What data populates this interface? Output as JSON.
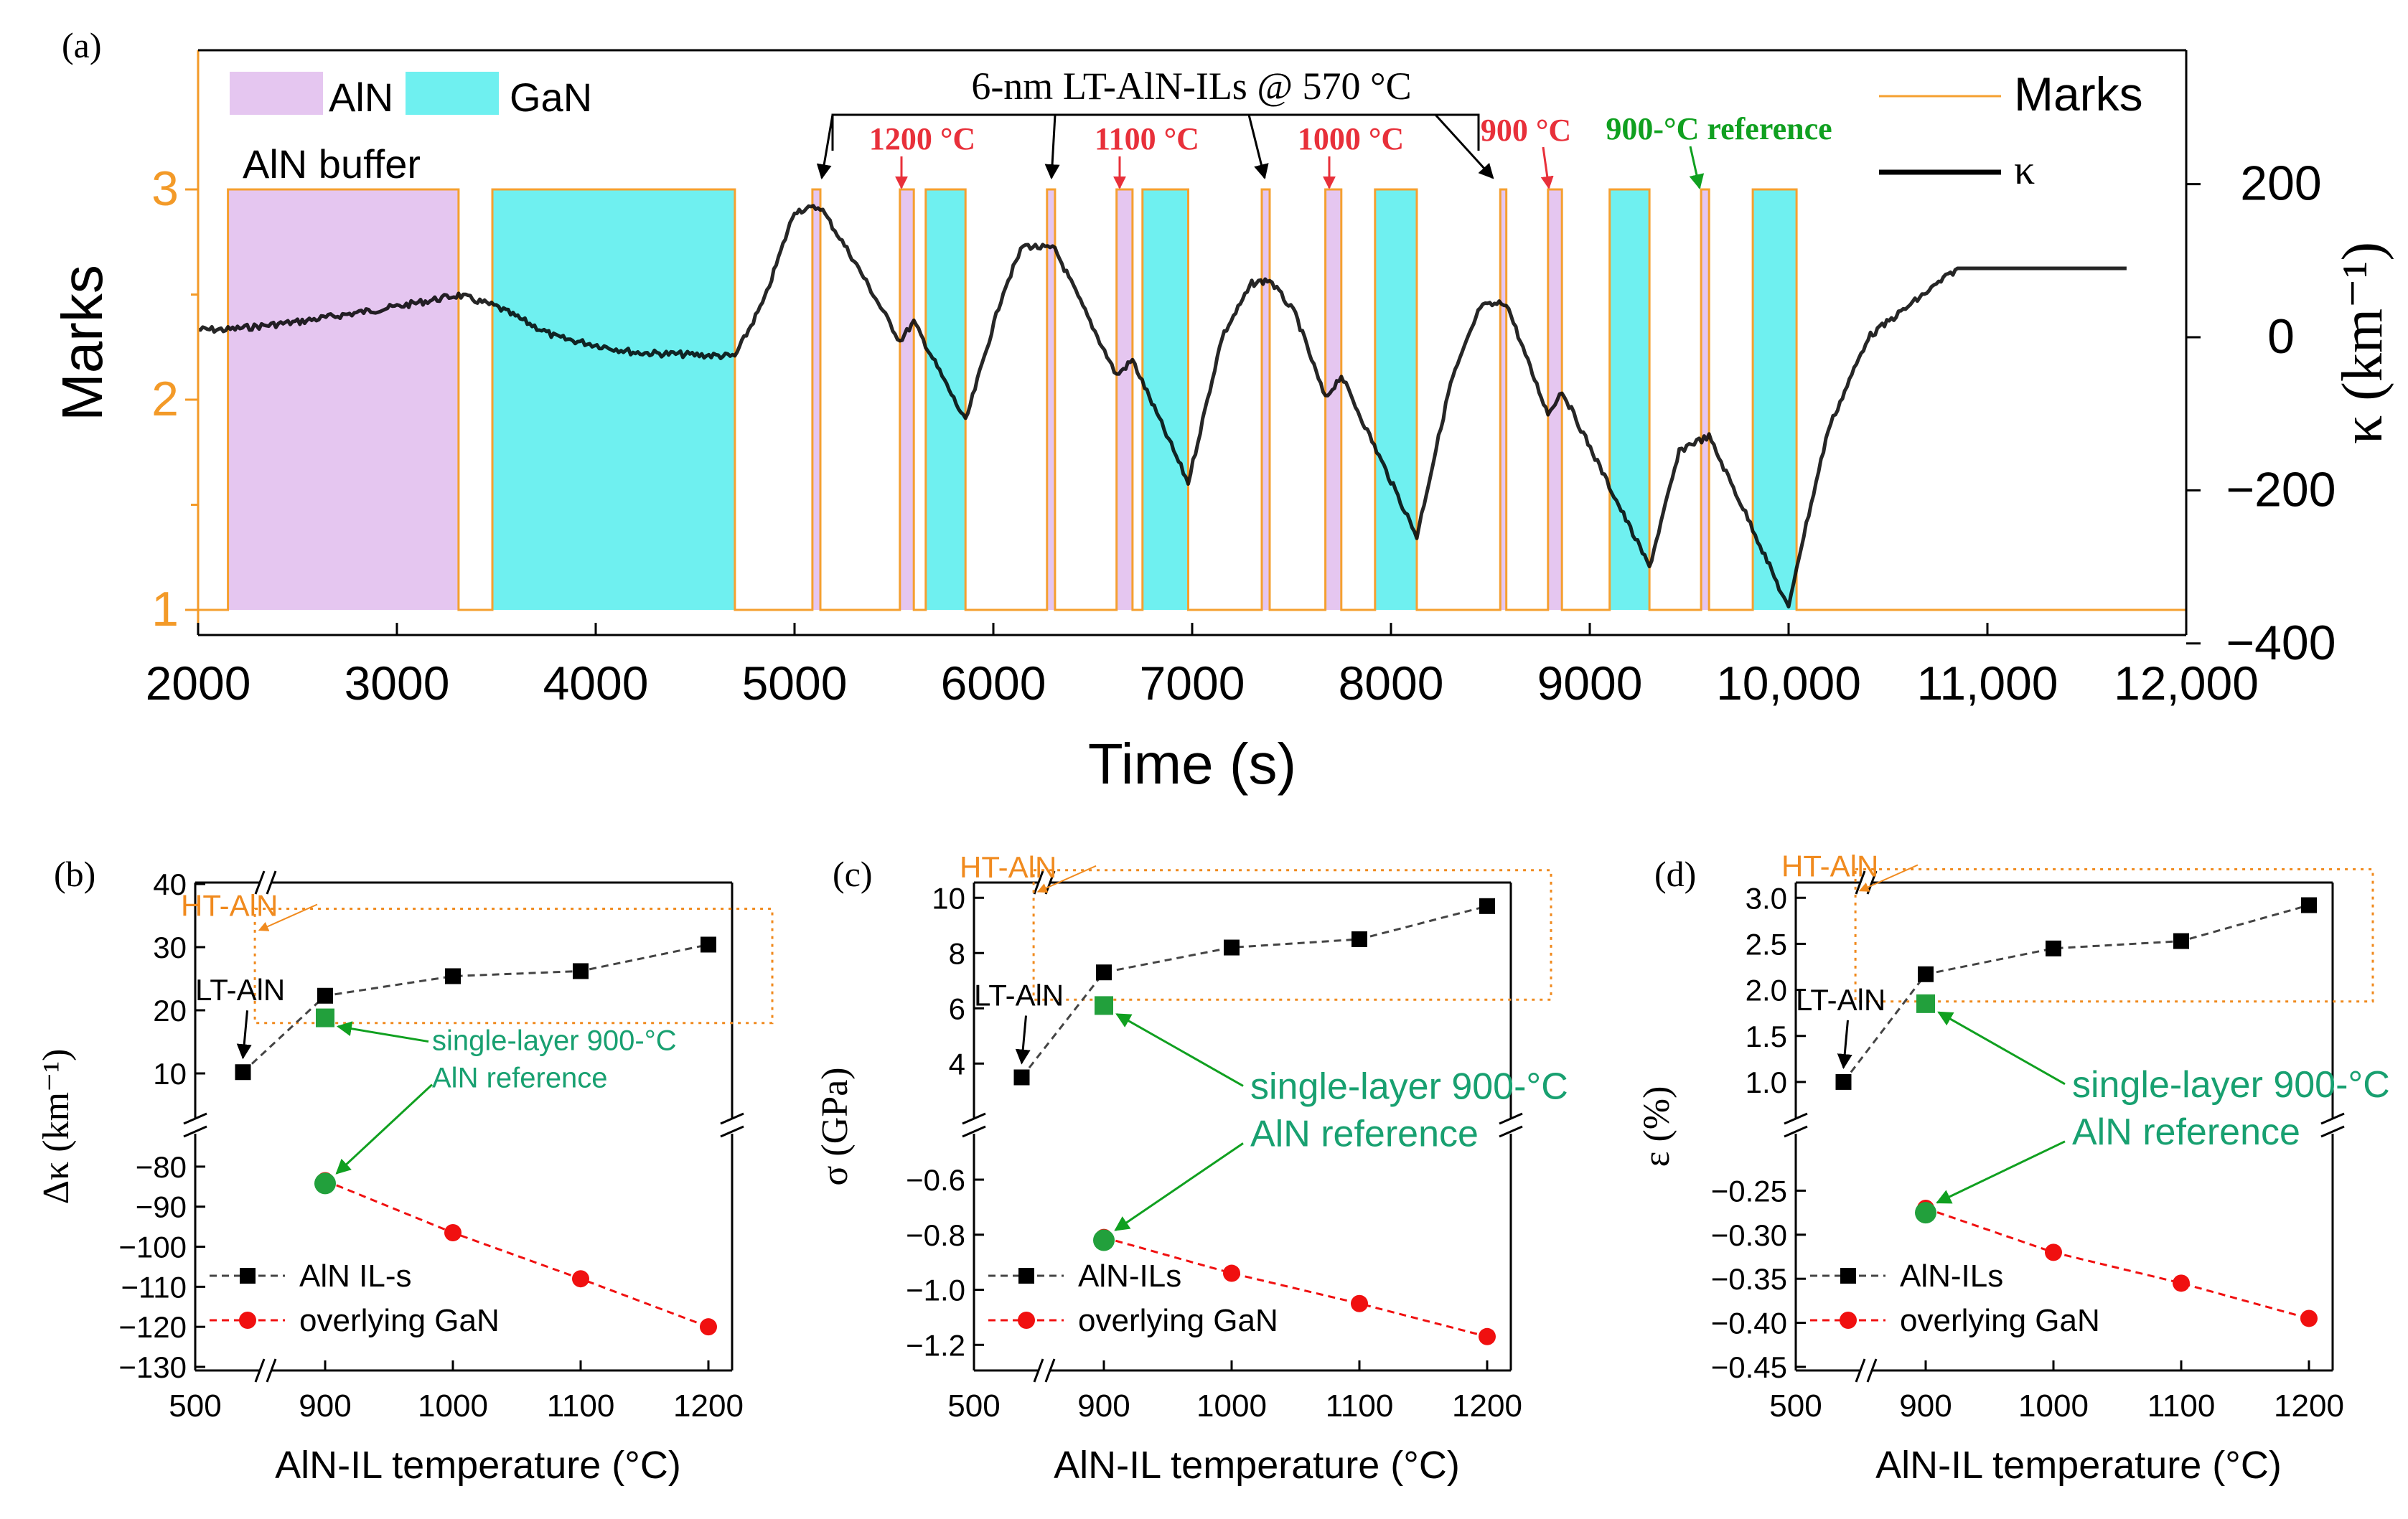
{
  "chart_data": [
    {
      "panel": "(a)",
      "type": "line",
      "xlabel": "Time (s)",
      "ylabel_left": "Marks",
      "ylabel_right": "κ (km⁻¹)",
      "xlim": [
        2000,
        12000
      ],
      "ylim_left": [
        0.8,
        3.6
      ],
      "ylim_right": [
        -400,
        400
      ],
      "x_ticks": [
        "2000",
        "3000",
        "4000",
        "5000",
        "6000",
        "7000",
        "8000",
        "9000",
        "10,000",
        "11,000",
        "12,000"
      ],
      "y_left_ticks": [
        "1",
        "2",
        "3"
      ],
      "y_right_ticks": [
        "−400",
        "−200",
        "0",
        "200"
      ],
      "legend": {
        "aln": "AlN",
        "gan": "GaN",
        "marks": "Marks",
        "kappa": "κ"
      },
      "annotations": {
        "buffer": "AlN buffer",
        "il": "6-nm LT-AlN-ILs @ 570 °C",
        "t1200": "1200 °C",
        "t1100": "1100 °C",
        "t1000": "1000 °C",
        "t900": "900 °C",
        "ref": "900-°C reference"
      },
      "aln_regions": [
        [
          2150,
          3310
        ],
        [
          5090,
          5130
        ],
        [
          5530,
          5600
        ],
        [
          6270,
          6310
        ],
        [
          6620,
          6700
        ],
        [
          7350,
          7390
        ],
        [
          7670,
          7750
        ],
        [
          8550,
          8580
        ],
        [
          8790,
          8860
        ],
        [
          9560,
          9600
        ]
      ],
      "gan_regions": [
        [
          3480,
          4700
        ],
        [
          5660,
          5860
        ],
        [
          6750,
          6980
        ],
        [
          7920,
          8130
        ],
        [
          9100,
          9300
        ],
        [
          9820,
          10040
        ]
      ],
      "marks_series": [
        [
          2000,
          1
        ],
        [
          2150,
          1
        ],
        [
          2150,
          3
        ],
        [
          3310,
          3
        ],
        [
          3310,
          1
        ],
        [
          3480,
          1
        ],
        [
          3480,
          3
        ],
        [
          4700,
          3
        ],
        [
          4700,
          1
        ],
        [
          5090,
          1
        ],
        [
          5090,
          3
        ],
        [
          5130,
          3
        ],
        [
          5130,
          1
        ],
        [
          5530,
          1
        ],
        [
          5530,
          3
        ],
        [
          5600,
          3
        ],
        [
          5600,
          1
        ],
        [
          5660,
          1
        ],
        [
          5660,
          3
        ],
        [
          5860,
          3
        ],
        [
          5860,
          1
        ],
        [
          6270,
          1
        ],
        [
          6270,
          3
        ],
        [
          6310,
          3
        ],
        [
          6310,
          1
        ],
        [
          6620,
          1
        ],
        [
          6620,
          3
        ],
        [
          6700,
          3
        ],
        [
          6700,
          1
        ],
        [
          6750,
          1
        ],
        [
          6750,
          3
        ],
        [
          6980,
          3
        ],
        [
          6980,
          1
        ],
        [
          7350,
          1
        ],
        [
          7350,
          3
        ],
        [
          7390,
          3
        ],
        [
          7390,
          1
        ],
        [
          7670,
          1
        ],
        [
          7670,
          3
        ],
        [
          7750,
          3
        ],
        [
          7750,
          1
        ],
        [
          7920,
          1
        ],
        [
          7920,
          3
        ],
        [
          8130,
          3
        ],
        [
          8130,
          1
        ],
        [
          8550,
          1
        ],
        [
          8550,
          3
        ],
        [
          8580,
          3
        ],
        [
          8580,
          1
        ],
        [
          8790,
          1
        ],
        [
          8790,
          3
        ],
        [
          8860,
          3
        ],
        [
          8860,
          1
        ],
        [
          9100,
          1
        ],
        [
          9100,
          3
        ],
        [
          9300,
          3
        ],
        [
          9300,
          1
        ],
        [
          9560,
          1
        ],
        [
          9560,
          3
        ],
        [
          9600,
          3
        ],
        [
          9600,
          1
        ],
        [
          9820,
          1
        ],
        [
          9820,
          3
        ],
        [
          10040,
          3
        ],
        [
          10040,
          1
        ],
        [
          12000,
          1
        ]
      ],
      "kappa_series": [
        [
          2000,
          10
        ],
        [
          2150,
          10
        ],
        [
          2500,
          20
        ],
        [
          3000,
          40
        ],
        [
          3310,
          55
        ],
        [
          3500,
          40
        ],
        [
          3800,
          0
        ],
        [
          4200,
          -20
        ],
        [
          4700,
          -25
        ],
        [
          4850,
          50
        ],
        [
          5000,
          165
        ],
        [
          5130,
          170
        ],
        [
          5300,
          100
        ],
        [
          5530,
          -5
        ],
        [
          5600,
          20
        ],
        [
          5860,
          -110
        ],
        [
          6050,
          60
        ],
        [
          6150,
          120
        ],
        [
          6310,
          115
        ],
        [
          6450,
          40
        ],
        [
          6620,
          -50
        ],
        [
          6700,
          -30
        ],
        [
          6980,
          -190
        ],
        [
          7150,
          0
        ],
        [
          7300,
          70
        ],
        [
          7390,
          75
        ],
        [
          7520,
          30
        ],
        [
          7670,
          -80
        ],
        [
          7750,
          -50
        ],
        [
          8130,
          -260
        ],
        [
          8300,
          -60
        ],
        [
          8450,
          40
        ],
        [
          8580,
          45
        ],
        [
          8700,
          -40
        ],
        [
          8790,
          -100
        ],
        [
          8860,
          -70
        ],
        [
          9300,
          -300
        ],
        [
          9450,
          -150
        ],
        [
          9500,
          -140
        ],
        [
          9600,
          -130
        ],
        [
          9820,
          -250
        ],
        [
          10000,
          -355
        ],
        [
          10040,
          -300
        ],
        [
          10200,
          -120
        ],
        [
          10400,
          0
        ],
        [
          10600,
          40
        ],
        [
          10850,
          90
        ],
        [
          11700,
          90
        ]
      ]
    },
    {
      "panel": "(b)",
      "type": "scatter-line",
      "xlabel": "AlN-IL temperature (°C)",
      "ylabel": "Δκ (km⁻¹)",
      "x_ticks": [
        "500",
        "900",
        "1000",
        "1100",
        "1200"
      ],
      "y_upper_ticks": [
        "10",
        "20",
        "30",
        "40"
      ],
      "y_lower_ticks": [
        "−80",
        "−90",
        "−100",
        "−110",
        "−120",
        "−130"
      ],
      "upper_range": [
        5,
        40
      ],
      "lower_range": [
        -130,
        -75
      ],
      "series": [
        {
          "name": "AlN IL-s",
          "x": [
            570,
            900,
            1000,
            1100,
            1200
          ],
          "values": [
            10.2,
            22.3,
            25.4,
            26.2,
            30.4
          ]
        },
        {
          "name": "overlying GaN",
          "x": [
            900,
            1000,
            1100,
            1200
          ],
          "values": [
            -83.5,
            -96.5,
            -108,
            -120
          ]
        }
      ],
      "reference": {
        "aln": 18.8,
        "gan": -84.2
      },
      "labels": {
        "ht": "HT-AlN",
        "lt": "LT-AlN",
        "ref1": "single-layer 900-°C",
        "ref2": "AlN reference"
      }
    },
    {
      "panel": "(c)",
      "type": "scatter-line",
      "xlabel": "AlN-IL temperature (°C)",
      "ylabel": "σ (GPa)",
      "x_ticks": [
        "500",
        "900",
        "1000",
        "1100",
        "1200"
      ],
      "y_upper_ticks": [
        "4",
        "6",
        "8",
        "10"
      ],
      "y_lower_ticks": [
        "−0.6",
        "−0.8",
        "−1.0",
        "−1.2"
      ],
      "upper_range": [
        2.5,
        10.5
      ],
      "lower_range": [
        -1.28,
        -0.48
      ],
      "series": [
        {
          "name": "AlN-ILs",
          "x": [
            570,
            900,
            1000,
            1100,
            1200
          ],
          "values": [
            3.5,
            7.3,
            8.2,
            8.5,
            9.7
          ]
        },
        {
          "name": "overlying GaN",
          "x": [
            900,
            1000,
            1100,
            1200
          ],
          "values": [
            -0.81,
            -0.94,
            -1.05,
            -1.17
          ]
        }
      ],
      "reference": {
        "aln": 6.1,
        "gan": -0.82
      },
      "labels": {
        "ht": "HT-AlN",
        "lt": "LT-AlN",
        "ref1": "single-layer 900-°C",
        "ref2": "AlN reference"
      }
    },
    {
      "panel": "(d)",
      "type": "scatter-line",
      "xlabel": "AlN-IL temperature (°C)",
      "ylabel": "ε (%)",
      "x_ticks": [
        "500",
        "900",
        "1000",
        "1100",
        "1200"
      ],
      "y_upper_ticks": [
        "1.0",
        "1.5",
        "2.0",
        "2.5",
        "3.0"
      ],
      "y_lower_ticks": [
        "−0.25",
        "−0.30",
        "−0.35",
        "−0.40",
        "−0.45"
      ],
      "upper_range": [
        0.75,
        3.15
      ],
      "lower_range": [
        -0.45,
        -0.2
      ],
      "series": [
        {
          "name": "AlN-ILs",
          "x": [
            570,
            900,
            1000,
            1100,
            1200
          ],
          "values": [
            1.0,
            2.17,
            2.45,
            2.53,
            2.92
          ]
        },
        {
          "name": "overlying GaN",
          "x": [
            900,
            1000,
            1100,
            1200
          ],
          "values": [
            -0.27,
            -0.32,
            -0.355,
            -0.395
          ]
        }
      ],
      "reference": {
        "aln": 1.85,
        "gan": -0.275
      },
      "labels": {
        "ht": "HT-AlN",
        "lt": "LT-AlN",
        "ref1": "single-layer 900-°C",
        "ref2": "AlN reference"
      }
    }
  ],
  "colors": {
    "aln_fill": "#e5c6f0",
    "gan_fill": "#6ff0f0",
    "marks": "#f5a030",
    "kappa": "#000000",
    "orange_axis": "#f39a28",
    "red_label": "#e8303a",
    "green_label": "#10a020",
    "ref_green": "#22a03c",
    "ref_text": "#18a070",
    "gan_red": "#f01010",
    "ht_orange": "#f08a1e"
  }
}
